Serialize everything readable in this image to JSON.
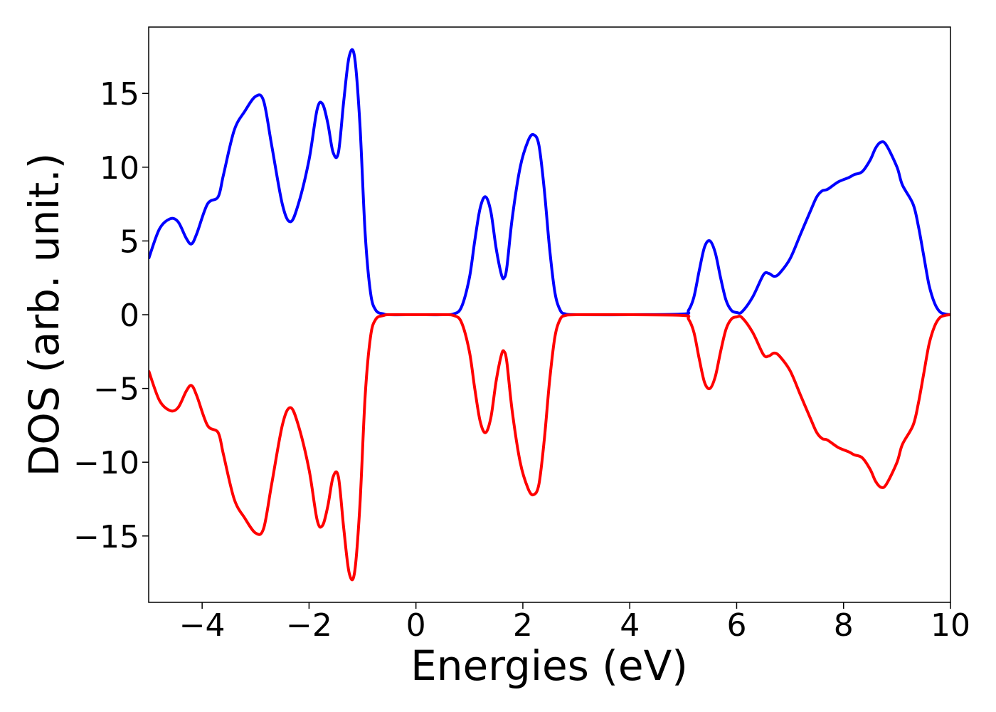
{
  "chart_data": {
    "type": "line",
    "title": "",
    "xlabel": "Energies (eV)",
    "ylabel": "DOS (arb. unit.)",
    "xlim": [
      -5,
      10
    ],
    "ylim": [
      -19.5,
      19.5
    ],
    "grid": false,
    "legend": null,
    "x_ticks": [
      {
        "value": -4,
        "label": "−4"
      },
      {
        "value": -2,
        "label": "−2"
      },
      {
        "value": 0,
        "label": "0"
      },
      {
        "value": 2,
        "label": "2"
      },
      {
        "value": 4,
        "label": "4"
      },
      {
        "value": 6,
        "label": "6"
      },
      {
        "value": 8,
        "label": "8"
      },
      {
        "value": 10,
        "label": "10"
      }
    ],
    "y_ticks": [
      {
        "value": 15,
        "label": "15"
      },
      {
        "value": 10,
        "label": "10"
      },
      {
        "value": 5,
        "label": "5"
      },
      {
        "value": 0,
        "label": "0"
      },
      {
        "value": -5,
        "label": "−5"
      },
      {
        "value": -10,
        "label": "−10"
      },
      {
        "value": -15,
        "label": "−15"
      }
    ],
    "series": [
      {
        "color": "#0000ff",
        "x": [
          -5.0,
          -4.8,
          -4.6,
          -4.45,
          -4.3,
          -4.2,
          -4.1,
          -3.9,
          -3.7,
          -3.6,
          -3.4,
          -3.2,
          -3.0,
          -2.85,
          -2.7,
          -2.5,
          -2.35,
          -2.2,
          -2.0,
          -1.85,
          -1.75,
          -1.65,
          -1.55,
          -1.45,
          -1.35,
          -1.25,
          -1.15,
          -1.05,
          -0.95,
          -0.85,
          -0.75,
          -0.6,
          -0.5,
          0.0,
          0.5,
          0.7,
          0.85,
          1.0,
          1.1,
          1.2,
          1.3,
          1.4,
          1.5,
          1.6,
          1.65,
          1.7,
          1.8,
          1.95,
          2.1,
          2.2,
          2.3,
          2.4,
          2.5,
          2.6,
          2.7,
          2.8,
          3.0,
          4.0,
          5.0,
          5.1,
          5.2,
          5.3,
          5.4,
          5.5,
          5.6,
          5.7,
          5.8,
          5.9,
          6.0,
          6.1,
          6.3,
          6.5,
          6.6,
          6.7,
          6.8,
          7.0,
          7.2,
          7.4,
          7.5,
          7.6,
          7.7,
          7.9,
          8.1,
          8.2,
          8.35,
          8.5,
          8.6,
          8.7,
          8.8,
          9.0,
          9.1,
          9.3,
          9.4,
          9.5,
          9.6,
          9.7,
          9.8,
          9.9,
          10.0
        ],
        "y": [
          3.8,
          5.8,
          6.5,
          6.3,
          5.2,
          4.8,
          5.5,
          7.5,
          8.0,
          9.5,
          12.5,
          13.8,
          14.8,
          14.5,
          11.5,
          7.5,
          6.3,
          7.5,
          10.5,
          13.9,
          14.3,
          13.0,
          11.0,
          11.0,
          14.5,
          17.5,
          17.5,
          13.0,
          5.5,
          1.5,
          0.3,
          0.05,
          0.0,
          0.0,
          0.0,
          0.05,
          0.5,
          2.5,
          5.0,
          7.2,
          8.0,
          7.0,
          4.5,
          2.7,
          2.5,
          3.2,
          6.5,
          10.0,
          11.8,
          12.2,
          11.5,
          8.5,
          4.5,
          1.5,
          0.3,
          0.05,
          0.0,
          0.0,
          0.05,
          0.3,
          1.2,
          3.0,
          4.6,
          5.0,
          4.2,
          2.5,
          1.0,
          0.3,
          0.15,
          0.2,
          1.2,
          2.7,
          2.8,
          2.6,
          2.8,
          3.8,
          5.5,
          7.2,
          8.0,
          8.4,
          8.5,
          9.0,
          9.3,
          9.5,
          9.7,
          10.5,
          11.3,
          11.7,
          11.5,
          10.0,
          8.8,
          7.5,
          6.0,
          4.0,
          2.0,
          0.8,
          0.2,
          0.05,
          0.0
        ]
      },
      {
        "color": "#ff0000",
        "x": [
          -5.0,
          -4.8,
          -4.6,
          -4.45,
          -4.3,
          -4.2,
          -4.1,
          -3.9,
          -3.7,
          -3.6,
          -3.4,
          -3.2,
          -3.0,
          -2.85,
          -2.7,
          -2.5,
          -2.35,
          -2.2,
          -2.0,
          -1.85,
          -1.75,
          -1.65,
          -1.55,
          -1.45,
          -1.35,
          -1.25,
          -1.15,
          -1.05,
          -0.95,
          -0.85,
          -0.75,
          -0.6,
          -0.5,
          0.0,
          0.5,
          0.7,
          0.85,
          1.0,
          1.1,
          1.2,
          1.3,
          1.4,
          1.5,
          1.6,
          1.65,
          1.7,
          1.8,
          1.95,
          2.1,
          2.2,
          2.3,
          2.4,
          2.5,
          2.6,
          2.7,
          2.8,
          3.0,
          4.0,
          5.0,
          5.1,
          5.2,
          5.3,
          5.4,
          5.5,
          5.6,
          5.7,
          5.8,
          5.9,
          6.0,
          6.1,
          6.3,
          6.5,
          6.6,
          6.7,
          6.8,
          7.0,
          7.2,
          7.4,
          7.5,
          7.6,
          7.7,
          7.9,
          8.1,
          8.2,
          8.35,
          8.5,
          8.6,
          8.7,
          8.8,
          9.0,
          9.1,
          9.3,
          9.4,
          9.5,
          9.6,
          9.7,
          9.8,
          9.9,
          10.0
        ],
        "y": [
          -3.8,
          -5.8,
          -6.5,
          -6.3,
          -5.2,
          -4.8,
          -5.5,
          -7.5,
          -8.0,
          -9.5,
          -12.5,
          -13.8,
          -14.8,
          -14.5,
          -11.5,
          -7.5,
          -6.3,
          -7.5,
          -10.5,
          -13.9,
          -14.3,
          -13.0,
          -11.0,
          -11.0,
          -14.5,
          -17.5,
          -17.5,
          -13.0,
          -5.5,
          -1.5,
          -0.3,
          -0.05,
          0.0,
          0.0,
          0.0,
          -0.05,
          -0.5,
          -2.5,
          -5.0,
          -7.2,
          -8.0,
          -7.0,
          -4.5,
          -2.7,
          -2.5,
          -3.2,
          -6.5,
          -10.0,
          -11.8,
          -12.2,
          -11.5,
          -8.5,
          -4.5,
          -1.5,
          -0.3,
          -0.05,
          0.0,
          0.0,
          -0.05,
          -0.3,
          -1.2,
          -3.0,
          -4.6,
          -5.0,
          -4.2,
          -2.5,
          -1.0,
          -0.3,
          -0.15,
          -0.2,
          -1.2,
          -2.7,
          -2.8,
          -2.6,
          -2.8,
          -3.8,
          -5.5,
          -7.2,
          -8.0,
          -8.4,
          -8.5,
          -9.0,
          -9.3,
          -9.5,
          -9.7,
          -10.5,
          -11.3,
          -11.7,
          -11.5,
          -10.0,
          -8.8,
          -7.5,
          -6.0,
          -4.0,
          -2.0,
          -0.8,
          -0.2,
          -0.05,
          0.0
        ]
      }
    ]
  }
}
